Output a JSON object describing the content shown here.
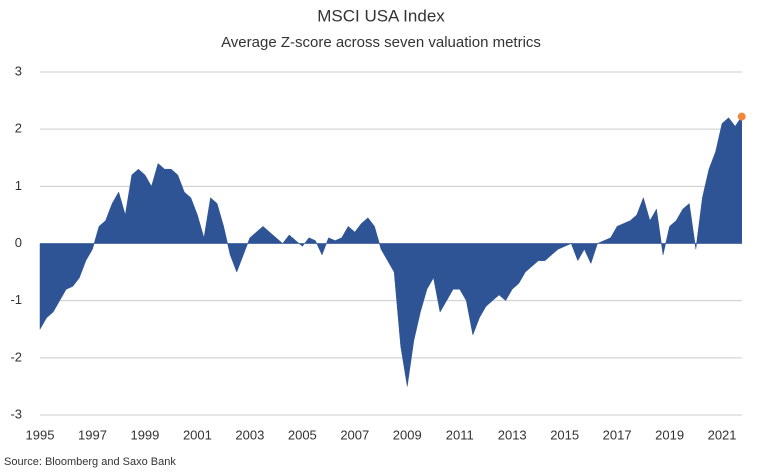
{
  "chart_data": {
    "type": "area",
    "title": "MSCI USA Index",
    "subtitle": "Average Z-score across seven valuation metrics",
    "source": "Source: Bloomberg and Saxo Bank",
    "x": [
      1995,
      1995.25,
      1995.5,
      1995.75,
      1996,
      1996.25,
      1996.5,
      1996.75,
      1997,
      1997.25,
      1997.5,
      1997.75,
      1998,
      1998.25,
      1998.5,
      1998.75,
      1999,
      1999.25,
      1999.5,
      1999.75,
      2000,
      2000.25,
      2000.5,
      2000.75,
      2001,
      2001.25,
      2001.5,
      2001.75,
      2002,
      2002.25,
      2002.5,
      2002.75,
      2003,
      2003.25,
      2003.5,
      2003.75,
      2004,
      2004.25,
      2004.5,
      2004.75,
      2005,
      2005.25,
      2005.5,
      2005.75,
      2006,
      2006.25,
      2006.5,
      2006.75,
      2007,
      2007.25,
      2007.5,
      2007.75,
      2008,
      2008.25,
      2008.5,
      2008.75,
      2009,
      2009.25,
      2009.5,
      2009.75,
      2010,
      2010.25,
      2010.5,
      2010.75,
      2011,
      2011.25,
      2011.5,
      2011.75,
      2012,
      2012.25,
      2012.5,
      2012.75,
      2013,
      2013.25,
      2013.5,
      2013.75,
      2014,
      2014.25,
      2014.5,
      2014.75,
      2015,
      2015.25,
      2015.5,
      2015.75,
      2016,
      2016.25,
      2016.5,
      2016.75,
      2017,
      2017.25,
      2017.5,
      2017.75,
      2018,
      2018.25,
      2018.5,
      2018.75,
      2019,
      2019.25,
      2019.5,
      2019.75,
      2020,
      2020.25,
      2020.5,
      2020.75,
      2021,
      2021.25,
      2021.5,
      2021.75
    ],
    "values": [
      -1.5,
      -1.3,
      -1.2,
      -1.0,
      -0.8,
      -0.75,
      -0.6,
      -0.3,
      -0.1,
      0.3,
      0.4,
      0.7,
      0.9,
      0.5,
      1.2,
      1.3,
      1.2,
      1.0,
      1.4,
      1.3,
      1.3,
      1.2,
      0.9,
      0.8,
      0.5,
      0.1,
      0.8,
      0.7,
      0.3,
      -0.2,
      -0.5,
      -0.2,
      0.1,
      0.2,
      0.3,
      0.2,
      0.1,
      0.0,
      0.15,
      0.05,
      -0.05,
      0.1,
      0.05,
      -0.2,
      0.1,
      0.05,
      0.1,
      0.3,
      0.2,
      0.35,
      0.45,
      0.3,
      -0.1,
      -0.3,
      -0.5,
      -1.8,
      -2.5,
      -1.7,
      -1.2,
      -0.8,
      -0.6,
      -1.2,
      -1.0,
      -0.8,
      -0.8,
      -1.0,
      -1.6,
      -1.3,
      -1.1,
      -1.0,
      -0.9,
      -1.0,
      -0.8,
      -0.7,
      -0.5,
      -0.4,
      -0.3,
      -0.3,
      -0.2,
      -0.1,
      -0.05,
      0.0,
      -0.3,
      -0.1,
      -0.35,
      0.0,
      0.05,
      0.1,
      0.3,
      0.35,
      0.4,
      0.5,
      0.8,
      0.4,
      0.6,
      -0.2,
      0.3,
      0.4,
      0.6,
      0.7,
      -0.1,
      0.8,
      1.3,
      1.6,
      2.1,
      2.2,
      2.05,
      2.22
    ],
    "color": "#2e5496",
    "last_point_color": "#f0883a",
    "xlim": [
      1995,
      2021.76
    ],
    "xticks": [
      1995,
      1997,
      1999,
      2001,
      2003,
      2005,
      2007,
      2009,
      2011,
      2013,
      2015,
      2017,
      2019,
      2021
    ],
    "ylim": [
      -3,
      3
    ],
    "yticks": [
      3,
      2,
      1,
      0,
      -1,
      -2,
      -3
    ],
    "grid": true
  }
}
